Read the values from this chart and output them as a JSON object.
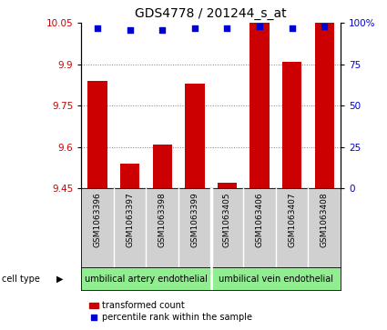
{
  "title": "GDS4778 / 201244_s_at",
  "samples": [
    "GSM1063396",
    "GSM1063397",
    "GSM1063398",
    "GSM1063399",
    "GSM1063405",
    "GSM1063406",
    "GSM1063407",
    "GSM1063408"
  ],
  "bar_values": [
    9.84,
    9.54,
    9.61,
    9.83,
    9.47,
    10.05,
    9.91,
    10.05
  ],
  "percentile_values": [
    97,
    96,
    96,
    97,
    97,
    98,
    97,
    98
  ],
  "ylim_left": [
    9.45,
    10.05
  ],
  "ylim_right": [
    0,
    100
  ],
  "yticks_left": [
    9.45,
    9.6,
    9.75,
    9.9,
    10.05
  ],
  "yticks_right": [
    0,
    25,
    50,
    75,
    100
  ],
  "ytick_labels_right": [
    "0",
    "25",
    "50",
    "75",
    "100%"
  ],
  "bar_color": "#cc0000",
  "dot_color": "#0000cc",
  "bar_width": 0.6,
  "cell_type_group1_label": "umbilical artery endothelial",
  "cell_type_group2_label": "umbilical vein endothelial",
  "cell_type_color": "#90ee90",
  "cell_type_label": "cell type",
  "legend_bar_label": "transformed count",
  "legend_dot_label": "percentile rank within the sample",
  "bg_color": "#ffffff",
  "plot_bg_color": "#ffffff",
  "tick_label_color_left": "#cc0000",
  "tick_label_color_right": "#0000cc",
  "grid_color": "#000000",
  "grid_alpha": 0.5,
  "grid_linestyle": ":",
  "sample_box_color": "#d0d0d0",
  "n_group1": 4,
  "n_group2": 4
}
